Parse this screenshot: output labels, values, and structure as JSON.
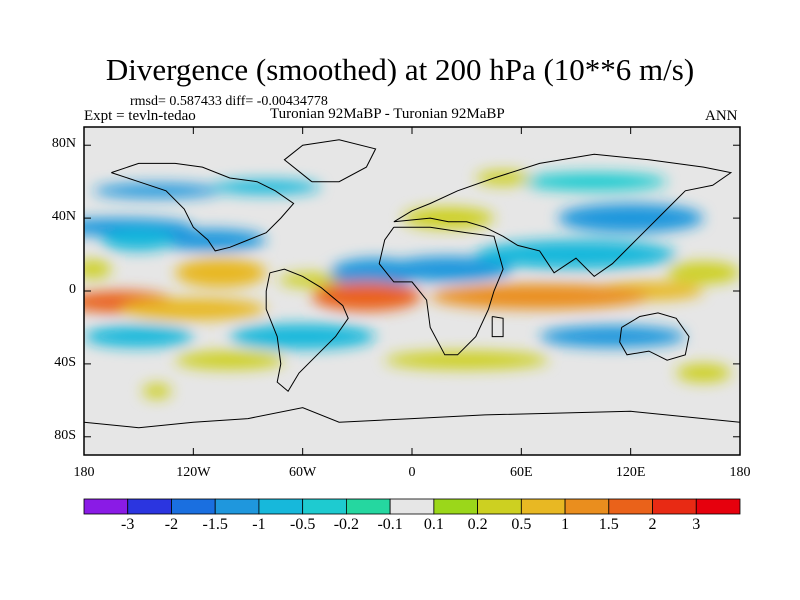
{
  "title": "Divergence (smoothed) at 200 hPa (10**6 m/s)",
  "stats": "rmsd= 0.587433 diff= -0.00434778",
  "expt": "Expt = tevln-tedao",
  "experiment_title": "Turonian  92MaBP - Turonian  92MaBP",
  "season": "ANN",
  "map": {
    "projection": "cylindrical equidistant",
    "lon_range": [
      -180,
      180
    ],
    "lat_range": [
      -90,
      90
    ],
    "x_ticks": [
      {
        "value": -180,
        "label": "180"
      },
      {
        "value": -120,
        "label": "120W"
      },
      {
        "value": -60,
        "label": "60W"
      },
      {
        "value": 0,
        "label": "0"
      },
      {
        "value": 60,
        "label": "60E"
      },
      {
        "value": 120,
        "label": "120E"
      },
      {
        "value": 180,
        "label": "180"
      }
    ],
    "y_ticks": [
      {
        "value": 80,
        "label": "80N"
      },
      {
        "value": 40,
        "label": "40N"
      },
      {
        "value": 0,
        "label": "0"
      },
      {
        "value": -40,
        "label": "40S"
      },
      {
        "value": -80,
        "label": "80S"
      }
    ],
    "background_color": "#e6e6e6",
    "field_blobs": [
      {
        "lon": -140,
        "lat": 55,
        "rlon": 35,
        "rlat": 4,
        "level": 3
      },
      {
        "lon": -80,
        "lat": 57,
        "rlon": 30,
        "rlat": 4,
        "level": 4
      },
      {
        "lon": -160,
        "lat": 35,
        "rlon": 40,
        "rlat": 5,
        "level": 3
      },
      {
        "lon": -110,
        "lat": 28,
        "rlon": 30,
        "rlat": 6,
        "level": 3
      },
      {
        "lon": -150,
        "lat": 28,
        "rlon": 20,
        "rlat": 6,
        "level": 4
      },
      {
        "lon": -175,
        "lat": 12,
        "rlon": 10,
        "rlat": 5,
        "level": 9
      },
      {
        "lon": -105,
        "lat": 10,
        "rlon": 25,
        "rlat": 8,
        "level": 10
      },
      {
        "lon": -55,
        "lat": 6,
        "rlon": 18,
        "rlat": 4,
        "level": 9
      },
      {
        "lon": -20,
        "lat": 10,
        "rlon": 25,
        "rlat": 8,
        "level": 3
      },
      {
        "lon": 20,
        "lat": 12,
        "rlon": 35,
        "rlat": 7,
        "level": 3
      },
      {
        "lon": 90,
        "lat": 20,
        "rlon": 55,
        "rlat": 8,
        "level": 4
      },
      {
        "lon": 120,
        "lat": 40,
        "rlon": 40,
        "rlat": 8,
        "level": 3
      },
      {
        "lon": 20,
        "lat": 40,
        "rlon": 25,
        "rlat": 6,
        "level": 9
      },
      {
        "lon": 100,
        "lat": 60,
        "rlon": 40,
        "rlat": 5,
        "level": 5
      },
      {
        "lon": 50,
        "lat": 62,
        "rlon": 15,
        "rlat": 4,
        "level": 9
      },
      {
        "lon": 160,
        "lat": 10,
        "rlon": 20,
        "rlat": 6,
        "level": 9
      },
      {
        "lon": 130,
        "lat": 0,
        "rlon": 30,
        "rlat": 5,
        "level": 10
      },
      {
        "lon": -160,
        "lat": -6,
        "rlon": 30,
        "rlat": 6,
        "level": 12
      },
      {
        "lon": -120,
        "lat": -10,
        "rlon": 40,
        "rlat": 6,
        "level": 10
      },
      {
        "lon": -25,
        "lat": -3,
        "rlon": 30,
        "rlat": 8,
        "level": 12
      },
      {
        "lon": 70,
        "lat": -3,
        "rlon": 60,
        "rlat": 7,
        "level": 11
      },
      {
        "lon": -150,
        "lat": -25,
        "rlon": 30,
        "rlat": 6,
        "level": 4
      },
      {
        "lon": -60,
        "lat": -25,
        "rlon": 40,
        "rlat": 7,
        "level": 4
      },
      {
        "lon": 110,
        "lat": -25,
        "rlon": 40,
        "rlat": 6,
        "level": 3
      },
      {
        "lon": -100,
        "lat": -38,
        "rlon": 30,
        "rlat": 5,
        "level": 9
      },
      {
        "lon": 30,
        "lat": -38,
        "rlon": 45,
        "rlat": 5,
        "level": 9
      },
      {
        "lon": -140,
        "lat": -55,
        "rlon": 8,
        "rlat": 4,
        "level": 9
      },
      {
        "lon": 160,
        "lat": -45,
        "rlon": 15,
        "rlat": 5,
        "level": 9
      }
    ],
    "coastlines": [
      [
        [
          -165,
          65
        ],
        [
          -150,
          70
        ],
        [
          -130,
          70
        ],
        [
          -115,
          68
        ],
        [
          -100,
          62
        ],
        [
          -85,
          60
        ],
        [
          -75,
          55
        ],
        [
          -65,
          48
        ],
        [
          -72,
          40
        ],
        [
          -80,
          32
        ],
        [
          -90,
          28
        ],
        [
          -100,
          24
        ],
        [
          -108,
          22
        ],
        [
          -112,
          28
        ],
        [
          -120,
          35
        ],
        [
          -125,
          45
        ],
        [
          -135,
          55
        ],
        [
          -150,
          60
        ],
        [
          -165,
          65
        ]
      ],
      [
        [
          -78,
          10
        ],
        [
          -70,
          12
        ],
        [
          -60,
          8
        ],
        [
          -50,
          2
        ],
        [
          -38,
          -8
        ],
        [
          -35,
          -15
        ],
        [
          -42,
          -25
        ],
        [
          -52,
          -35
        ],
        [
          -62,
          -45
        ],
        [
          -68,
          -55
        ],
        [
          -74,
          -50
        ],
        [
          -72,
          -40
        ],
        [
          -74,
          -25
        ],
        [
          -80,
          -10
        ],
        [
          -80,
          0
        ],
        [
          -78,
          10
        ]
      ],
      [
        [
          -10,
          35
        ],
        [
          10,
          35
        ],
        [
          30,
          32
        ],
        [
          45,
          30
        ],
        [
          50,
          12
        ],
        [
          45,
          0
        ],
        [
          42,
          -10
        ],
        [
          35,
          -25
        ],
        [
          25,
          -35
        ],
        [
          18,
          -35
        ],
        [
          10,
          -20
        ],
        [
          8,
          -5
        ],
        [
          0,
          5
        ],
        [
          -10,
          5
        ],
        [
          -18,
          15
        ],
        [
          -15,
          28
        ],
        [
          -10,
          35
        ]
      ],
      [
        [
          -10,
          38
        ],
        [
          0,
          44
        ],
        [
          10,
          48
        ],
        [
          25,
          55
        ],
        [
          45,
          62
        ],
        [
          70,
          70
        ],
        [
          100,
          75
        ],
        [
          130,
          72
        ],
        [
          160,
          68
        ],
        [
          175,
          65
        ],
        [
          165,
          58
        ],
        [
          150,
          55
        ],
        [
          140,
          45
        ],
        [
          130,
          35
        ],
        [
          120,
          25
        ],
        [
          110,
          15
        ],
        [
          100,
          8
        ],
        [
          90,
          18
        ],
        [
          78,
          10
        ],
        [
          70,
          22
        ],
        [
          58,
          25
        ],
        [
          50,
          30
        ],
        [
          40,
          35
        ],
        [
          30,
          38
        ],
        [
          20,
          38
        ],
        [
          10,
          40
        ],
        [
          -10,
          38
        ]
      ],
      [
        [
          115,
          -20
        ],
        [
          125,
          -14
        ],
        [
          135,
          -12
        ],
        [
          145,
          -15
        ],
        [
          152,
          -25
        ],
        [
          150,
          -35
        ],
        [
          140,
          -38
        ],
        [
          130,
          -33
        ],
        [
          118,
          -35
        ],
        [
          114,
          -28
        ],
        [
          115,
          -20
        ]
      ],
      [
        [
          -180,
          -72
        ],
        [
          -150,
          -75
        ],
        [
          -120,
          -72
        ],
        [
          -90,
          -70
        ],
        [
          -60,
          -64
        ],
        [
          -40,
          -72
        ],
        [
          0,
          -70
        ],
        [
          40,
          -68
        ],
        [
          80,
          -67
        ],
        [
          120,
          -66
        ],
        [
          160,
          -70
        ],
        [
          180,
          -72
        ]
      ],
      [
        [
          -55,
          60
        ],
        [
          -40,
          60
        ],
        [
          -25,
          68
        ],
        [
          -20,
          78
        ],
        [
          -40,
          83
        ],
        [
          -60,
          80
        ],
        [
          -70,
          72
        ],
        [
          -55,
          60
        ]
      ],
      [
        [
          44,
          -14
        ],
        [
          50,
          -15
        ],
        [
          50,
          -25
        ],
        [
          44,
          -25
        ],
        [
          44,
          -14
        ]
      ]
    ]
  },
  "colorbar": {
    "levels": [
      "-3",
      "-2",
      "-1.5",
      "-1",
      "-0.5",
      "-0.2",
      "-0.1",
      "0.1",
      "0.2",
      "0.5",
      "1",
      "1.5",
      "2",
      "3"
    ],
    "colors": [
      "#8a1be6",
      "#2b35e0",
      "#1a6fe0",
      "#1f97dd",
      "#17b8db",
      "#1ecbd0",
      "#25d7a0",
      "#e6e6e6",
      "#9bd71a",
      "#cdd021",
      "#e8b823",
      "#ea8e1e",
      "#ea621a",
      "#e82a14",
      "#e6000d"
    ]
  }
}
